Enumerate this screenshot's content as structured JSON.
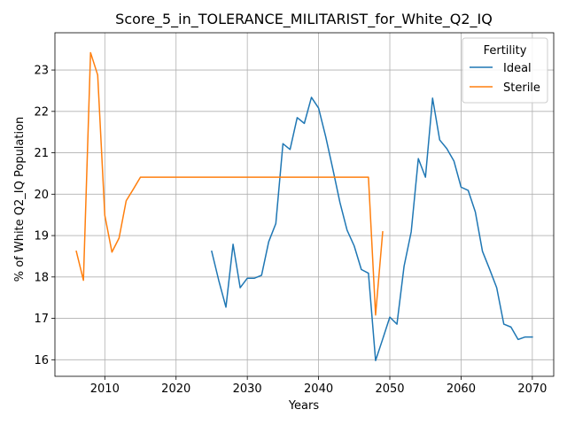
{
  "chart_data": {
    "type": "line",
    "title": "Score_5_in_TOLERANCE_MILITARIST_for_White_Q2_IQ",
    "xlabel": "Years",
    "ylabel": "% of White Q2_IQ Population",
    "xlim": [
      2003,
      2073
    ],
    "ylim": [
      15.6,
      23.9
    ],
    "xticks": [
      2010,
      2020,
      2030,
      2040,
      2050,
      2060,
      2070
    ],
    "yticks": [
      16,
      17,
      18,
      19,
      20,
      21,
      22,
      23
    ],
    "grid": true,
    "legend": {
      "title": "Fertility",
      "placement": "top-right"
    },
    "series": [
      {
        "name": "Ideal",
        "color": "#1f77b4",
        "x": [
          2025,
          2026,
          2027,
          2028,
          2029,
          2030,
          2031,
          2032,
          2033,
          2034,
          2035,
          2036,
          2037,
          2038,
          2039,
          2040,
          2041,
          2042,
          2043,
          2044,
          2045,
          2046,
          2047,
          2048,
          2049,
          2050,
          2051,
          2052,
          2053,
          2054,
          2055,
          2056,
          2057,
          2058,
          2059,
          2060,
          2061,
          2062,
          2063,
          2064,
          2065,
          2066,
          2067,
          2068,
          2069,
          2070
        ],
        "values": [
          18.62,
          17.91,
          17.27,
          18.79,
          17.74,
          17.97,
          17.97,
          18.04,
          18.85,
          19.29,
          21.22,
          21.08,
          21.85,
          21.71,
          22.34,
          22.08,
          21.39,
          20.61,
          19.8,
          19.13,
          18.75,
          18.18,
          18.09,
          15.98,
          16.5,
          17.03,
          16.86,
          18.26,
          19.09,
          20.86,
          20.41,
          22.32,
          21.31,
          21.1,
          20.8,
          20.17,
          20.09,
          19.57,
          18.62,
          18.19,
          17.74,
          16.86,
          16.79,
          16.49,
          16.55,
          16.55
        ]
      },
      {
        "name": "Sterile",
        "color": "#ff7f0e",
        "x": [
          2006,
          2007,
          2008,
          2009,
          2010,
          2011,
          2012,
          2013,
          2014,
          2015,
          2016,
          2017,
          2018,
          2019,
          2020,
          2021,
          2022,
          2023,
          2024,
          2025,
          2026,
          2027,
          2028,
          2029,
          2030,
          2031,
          2032,
          2033,
          2034,
          2035,
          2036,
          2037,
          2038,
          2039,
          2040,
          2041,
          2042,
          2043,
          2044,
          2045,
          2046,
          2047,
          2048,
          2049
        ],
        "values": [
          18.62,
          17.92,
          23.42,
          22.88,
          19.49,
          18.6,
          18.94,
          19.84,
          20.12,
          20.41,
          20.41,
          20.41,
          20.41,
          20.41,
          20.41,
          20.41,
          20.41,
          20.41,
          20.41,
          20.41,
          20.41,
          20.41,
          20.41,
          20.41,
          20.41,
          20.41,
          20.41,
          20.41,
          20.41,
          20.41,
          20.41,
          20.41,
          20.41,
          20.41,
          20.41,
          20.41,
          20.41,
          20.41,
          20.41,
          20.41,
          20.41,
          20.41,
          17.08,
          19.09
        ]
      }
    ]
  }
}
